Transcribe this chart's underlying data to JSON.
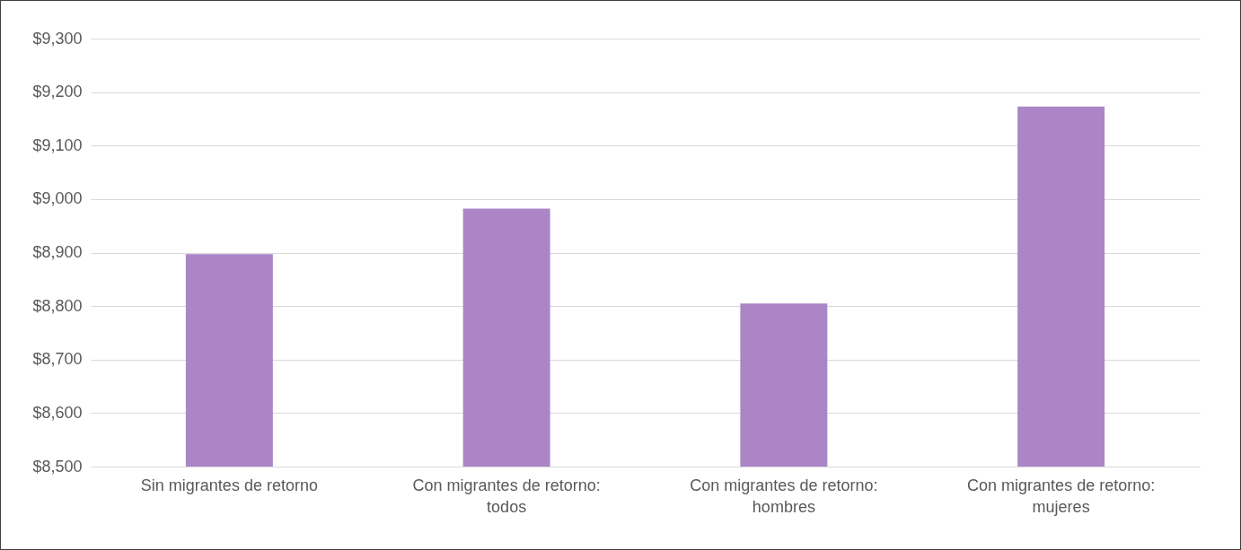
{
  "chart_data": {
    "type": "bar",
    "categories": [
      "Sin migrantes de retorno",
      "Con migrantes de retorno: todos",
      "Con migrantes de retorno: hombres",
      "Con migrantes de retorno: mujeres"
    ],
    "values": [
      8897,
      8982,
      8805,
      9173
    ],
    "color": "#ac85c7",
    "ylim": [
      8500,
      9300
    ],
    "yticks": [
      {
        "value": 8500,
        "label": "$8,500"
      },
      {
        "value": 8600,
        "label": "$8,600"
      },
      {
        "value": 8700,
        "label": "$8,700"
      },
      {
        "value": 8800,
        "label": "$8,800"
      },
      {
        "value": 8900,
        "label": "$8,900"
      },
      {
        "value": 9000,
        "label": "$9,000"
      },
      {
        "value": 9100,
        "label": "$9,100"
      },
      {
        "value": 9200,
        "label": "$9,200"
      },
      {
        "value": 9300,
        "label": "$9,300"
      }
    ],
    "grid": "y"
  }
}
